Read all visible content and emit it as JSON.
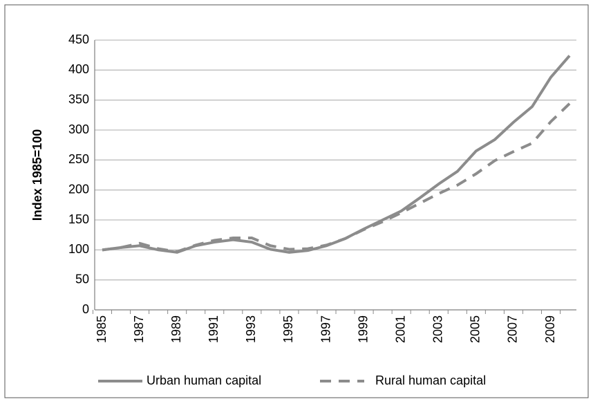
{
  "chart_data": {
    "type": "line",
    "y_label": "Index 1985=100",
    "categories": [
      "1985",
      null,
      "1987",
      null,
      "1989",
      null,
      "1991",
      null,
      "1993",
      null,
      "1995",
      null,
      "1997",
      null,
      "1999",
      null,
      "2001",
      null,
      "2003",
      null,
      "2005",
      null,
      "2007",
      null,
      "2009",
      null
    ],
    "series": [
      {
        "name": "Urban human capital",
        "color": "#8c8c8c",
        "dash": "solid",
        "values": [
          100,
          104,
          107,
          100,
          96,
          107,
          113,
          117,
          113,
          101,
          96,
          99,
          107,
          119,
          135,
          150,
          165,
          187,
          210,
          231,
          265,
          284,
          313,
          339,
          388,
          424
        ]
      },
      {
        "name": "Rural human capital",
        "color": "#8c8c8c",
        "dash": "dashed",
        "values": [
          100,
          104,
          111,
          102,
          97,
          108,
          116,
          120,
          120,
          107,
          101,
          102,
          108,
          119,
          134,
          147,
          162,
          178,
          194,
          208,
          227,
          249,
          264,
          278,
          314,
          344
        ]
      }
    ],
    "ylim": [
      0,
      450
    ],
    "yticks": [
      0,
      50,
      100,
      150,
      200,
      250,
      300,
      350,
      400,
      450
    ],
    "grid": true
  }
}
